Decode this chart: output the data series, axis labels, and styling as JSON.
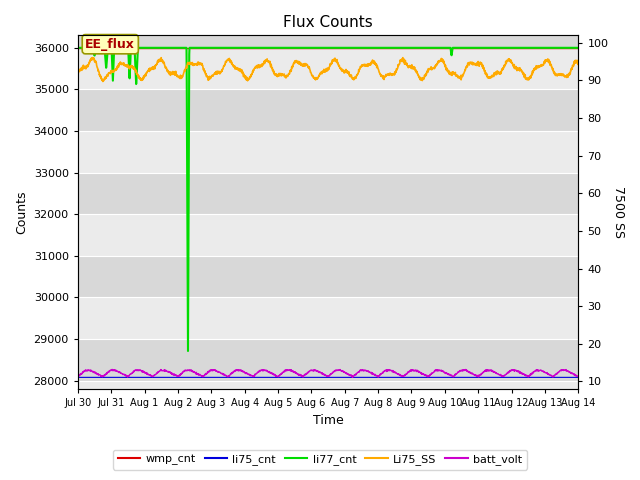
{
  "title": "Flux Counts",
  "xlabel": "Time",
  "ylabel_left": "Counts",
  "ylabel_right": "7500 SS",
  "ylim_left": [
    27800,
    36300
  ],
  "ylim_right": [
    8,
    102
  ],
  "yticks_left": [
    28000,
    29000,
    30000,
    31000,
    32000,
    33000,
    34000,
    35000,
    36000
  ],
  "yticks_right": [
    10,
    20,
    30,
    40,
    50,
    60,
    70,
    80,
    90,
    100
  ],
  "bg_light": "#ebebeb",
  "bg_dark": "#d8d8d8",
  "annotation_text": "EE_flux",
  "annotation_color": "#aa0000",
  "annotation_bg": "#ffffbb",
  "annotation_edge": "#999900",
  "colors": {
    "wmp_cnt": "#dd0000",
    "li75_cnt": "#0000dd",
    "li77_cnt": "#00dd00",
    "Li75_SS": "#ffaa00",
    "batt_volt": "#cc00cc"
  },
  "xtick_labels": [
    "Jul 30",
    "Jul 31",
    "Aug 1",
    "Aug 2",
    "Aug 3",
    "Aug 4",
    "Aug 5",
    "Aug 6",
    "Aug 7",
    "Aug 8",
    "Aug 9",
    "Aug 10",
    "Aug 11",
    "Aug 12",
    "Aug 13",
    "Aug 14"
  ]
}
